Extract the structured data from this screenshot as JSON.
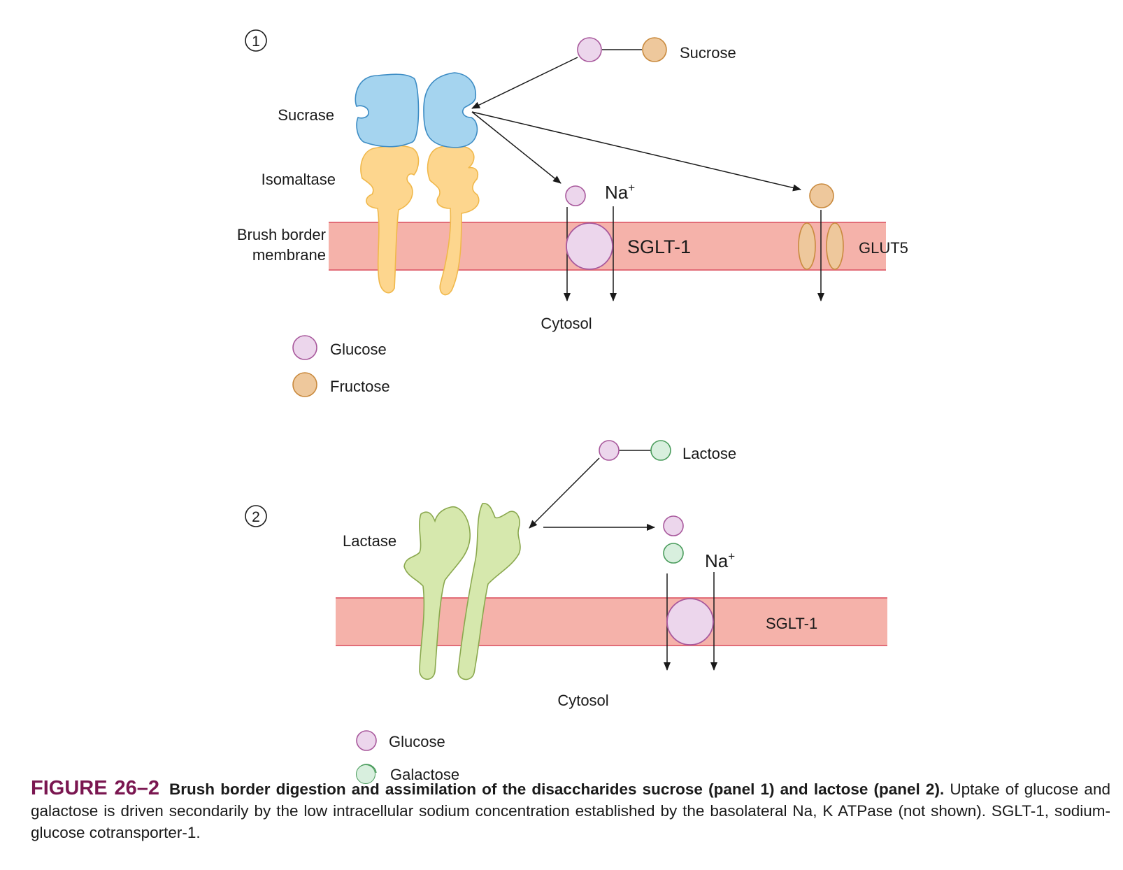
{
  "panel1": {
    "number": "1",
    "enzyme_top_label": "Sucrase",
    "enzyme_bottom_label": "Isomaltase",
    "membrane_label_line1": "Brush border",
    "membrane_label_line2": "membrane",
    "substrate_label": "Sucrose",
    "ion_label": "Na",
    "ion_charge": "+",
    "transporter1_label": "SGLT-1",
    "transporter2_label": "GLUT5",
    "cytosol_label": "Cytosol",
    "legend": [
      {
        "label": "Glucose",
        "color": "#ecd6ec"
      },
      {
        "label": "Fructose",
        "color": "#eec89c"
      }
    ]
  },
  "panel2": {
    "number": "2",
    "enzyme_label": "Lactase",
    "substrate_label": "Lactose",
    "ion_label": "Na",
    "ion_charge": "+",
    "transporter_label": "SGLT-1",
    "cytosol_label": "Cytosol",
    "legend": [
      {
        "label": "Glucose",
        "color": "#ecd6ec"
      },
      {
        "label": "Galactose",
        "color": "#d8efde"
      }
    ]
  },
  "caption": {
    "figure_number": "FIGURE 26–2",
    "title": "Brush border digestion and assimilation of the disaccharides sucrose (panel 1) and lactose (panel 2).",
    "body": "Uptake of glucose and galactose is driven secondarily by the low intracellular sodium concentration established by the basolateral Na, K ATPase (not shown). SGLT-1, sodium-glucose cotransporter-1."
  },
  "colors": {
    "membrane": "#f5b2aa",
    "membrane_edge": "#e26d78",
    "sucrase": "#a5d4ef",
    "isomaltase": "#fdd68e",
    "lactase": "#d6e8ad",
    "glucose": "#ecd6ec",
    "fructose": "#eec89c",
    "galactose": "#d8efde",
    "caption_accent": "#7a1650"
  }
}
